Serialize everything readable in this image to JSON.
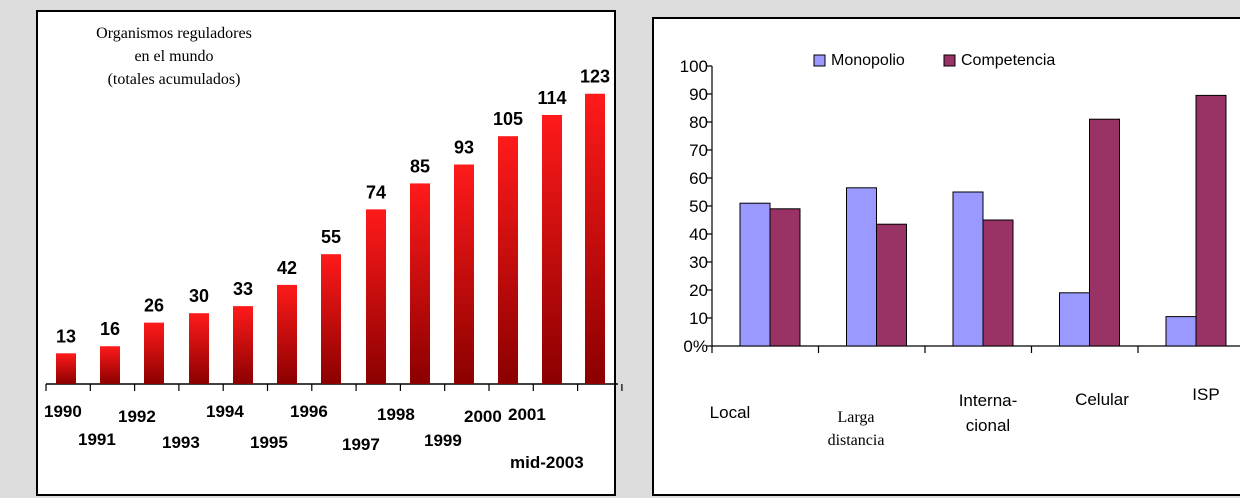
{
  "chart_data": [
    {
      "type": "bar",
      "title_lines": [
        "Organismos reguladores",
        "en el mundo",
        "(totales acumulados)"
      ],
      "categories": [
        "1990",
        "1991",
        "1992",
        "1993",
        "1994",
        "1995",
        "1996",
        "1997",
        "1998",
        "1999",
        "2000",
        "2001",
        "mid-2003"
      ],
      "values": [
        13,
        16,
        26,
        30,
        33,
        42,
        55,
        74,
        85,
        93,
        105,
        114,
        123
      ],
      "ylim": [
        0,
        130
      ],
      "bar_color_top": "#ff1a1a",
      "bar_color_bottom": "#8b0000"
    },
    {
      "type": "bar",
      "categories": [
        [
          "Local"
        ],
        [
          "Larga",
          "distancia"
        ],
        [
          "Interna-",
          "cional"
        ],
        [
          "Celular"
        ],
        [
          "ISP"
        ]
      ],
      "series": [
        {
          "name": "Monopolio",
          "values": [
            51,
            56.5,
            55,
            19,
            10.5
          ],
          "color": "#9999ff"
        },
        {
          "name": "Competencia",
          "values": [
            49,
            43.5,
            45,
            81,
            89.5
          ],
          "color": "#993366"
        }
      ],
      "y_ticks": [
        "0%",
        "10",
        "20",
        "30",
        "40",
        "50",
        "60",
        "70",
        "80",
        "90",
        "100"
      ],
      "ylim": [
        0,
        100
      ],
      "legend": "top"
    }
  ]
}
